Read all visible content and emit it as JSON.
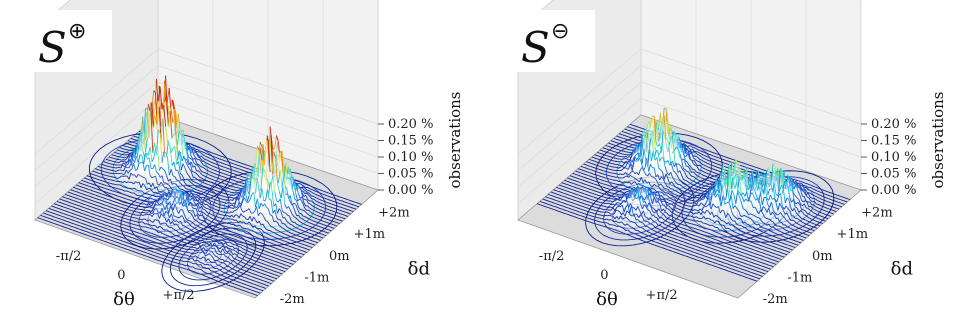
{
  "chart_data": [
    {
      "type": "surface",
      "title": "S",
      "title_superscript": "⊕",
      "x_label": "δθ",
      "y_label": "δd",
      "z_label": "observations",
      "x_ticks": [
        "-π/2",
        "0",
        "+π/2"
      ],
      "y_ticks": [
        "-2m",
        "-1m",
        "0m",
        "+1m",
        "+2m"
      ],
      "z_ticks": [
        "0.00 %",
        "0.05 %",
        "0.10 %",
        "0.15 %",
        "0.20 %"
      ],
      "z_range": [
        0,
        0.22
      ],
      "colormap": [
        "#0a1e8c",
        "#1e50dc",
        "#00b4e6",
        "#50e6b4",
        "#f0e632",
        "#f08c14",
        "#c81e0a"
      ],
      "ridges": [
        {
          "delta_theta": -1.2,
          "delta_d": 0.6,
          "peak": 0.21
        },
        {
          "delta_theta": 0.9,
          "delta_d": 0.6,
          "peak": 0.18
        },
        {
          "delta_theta": -0.3,
          "delta_d": -0.6,
          "peak": 0.05
        },
        {
          "delta_theta": 0.9,
          "delta_d": -1.5,
          "peak": 0.02
        }
      ]
    },
    {
      "type": "surface",
      "title": "S",
      "title_superscript": "⊖",
      "x_label": "δθ",
      "y_label": "δd",
      "z_label": "observations",
      "x_ticks": [
        "-π/2",
        "0",
        "+π/2"
      ],
      "y_ticks": [
        "-2m",
        "-1m",
        "0m",
        "+1m",
        "+2m"
      ],
      "z_ticks": [
        "0.00 %",
        "0.05 %",
        "0.10 %",
        "0.15 %",
        "0.20 %"
      ],
      "z_range": [
        0,
        0.22
      ],
      "colormap": [
        "#0a1e8c",
        "#1e50dc",
        "#00b4e6",
        "#50e6b4",
        "#f0e632",
        "#f08c14",
        "#c81e0a"
      ],
      "ridges": [
        {
          "delta_theta": -1.0,
          "delta_d": 0.8,
          "peak": 0.14
        },
        {
          "delta_theta": 0.6,
          "delta_d": 0.4,
          "peak": 0.1
        },
        {
          "delta_theta": 1.2,
          "delta_d": 0.9,
          "peak": 0.09
        },
        {
          "delta_theta": -0.6,
          "delta_d": -0.7,
          "peak": 0.05
        }
      ]
    }
  ]
}
